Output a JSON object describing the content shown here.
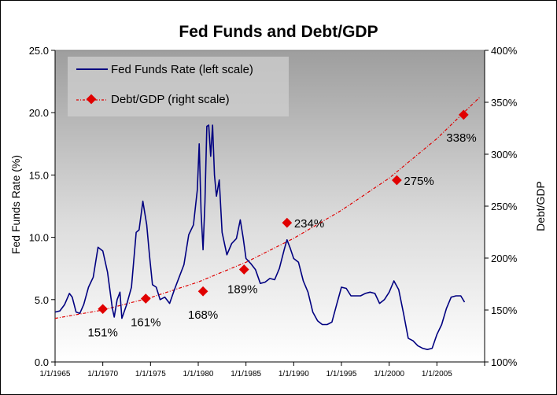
{
  "chart_data": {
    "type": "line",
    "title": "Fed Funds and Debt/GDP",
    "ylabel": "Fed Funds Rate (%)",
    "y2label": "Debt/GDP",
    "ylim": [
      0,
      25
    ],
    "y2lim": [
      100,
      400
    ],
    "xlim": [
      1965,
      2010
    ],
    "y_ticks": [
      "0.0",
      "5.0",
      "10.0",
      "15.0",
      "20.0",
      "25.0"
    ],
    "y2_ticks": [
      "100%",
      "150%",
      "200%",
      "250%",
      "300%",
      "350%",
      "400%"
    ],
    "x_ticks": [
      "1/1/1965",
      "1/1/1970",
      "1/1/1975",
      "1/1/1980",
      "1/1/1985",
      "1/1/1990",
      "1/1/1995",
      "1/1/2000",
      "1/1/2005"
    ],
    "x_tick_years": [
      1965,
      1970,
      1975,
      1980,
      1985,
      1990,
      1995,
      2000,
      2005
    ],
    "grid": false,
    "legend_position": "top-left",
    "series": [
      {
        "name": "Fed Funds Rate (left scale)",
        "axis": "left",
        "color": "#000080",
        "x": [
          1965.0,
          1965.5,
          1966.0,
          1966.5,
          1966.8,
          1967.2,
          1967.6,
          1968.0,
          1968.5,
          1969.0,
          1969.5,
          1970.0,
          1970.5,
          1971.0,
          1971.2,
          1971.5,
          1971.8,
          1972.0,
          1972.5,
          1973.0,
          1973.5,
          1973.8,
          1974.2,
          1974.6,
          1974.9,
          1975.2,
          1975.6,
          1976.0,
          1976.5,
          1977.0,
          1977.5,
          1978.0,
          1978.5,
          1979.0,
          1979.5,
          1979.9,
          1980.1,
          1980.3,
          1980.5,
          1980.7,
          1980.9,
          1981.1,
          1981.3,
          1981.5,
          1981.7,
          1981.9,
          1982.2,
          1982.5,
          1982.8,
          1983.0,
          1983.5,
          1984.0,
          1984.4,
          1984.7,
          1985.0,
          1985.5,
          1986.0,
          1986.5,
          1987.0,
          1987.5,
          1988.0,
          1988.5,
          1989.0,
          1989.3,
          1989.6,
          1990.0,
          1990.5,
          1991.0,
          1991.5,
          1992.0,
          1992.5,
          1993.0,
          1993.5,
          1994.0,
          1994.5,
          1995.0,
          1995.5,
          1996.0,
          1996.5,
          1997.0,
          1997.5,
          1998.0,
          1998.5,
          1999.0,
          1999.5,
          2000.0,
          2000.5,
          2001.0,
          2001.5,
          2002.0,
          2002.5,
          2003.0,
          2003.5,
          2004.0,
          2004.5,
          2005.0,
          2005.5,
          2006.0,
          2006.5,
          2007.0,
          2007.5,
          2007.9
        ],
        "values": [
          4.0,
          4.1,
          4.6,
          5.5,
          5.2,
          4.0,
          3.9,
          4.6,
          6.0,
          6.8,
          9.2,
          8.9,
          7.2,
          4.3,
          3.6,
          5.0,
          5.6,
          3.5,
          4.6,
          6.0,
          10.4,
          10.6,
          12.9,
          11.0,
          8.5,
          6.2,
          6.0,
          5.0,
          5.2,
          4.7,
          5.8,
          6.8,
          7.8,
          10.2,
          11.0,
          13.8,
          17.5,
          12.0,
          9.0,
          12.8,
          18.9,
          19.0,
          16.5,
          19.0,
          15.0,
          13.3,
          14.6,
          10.4,
          9.3,
          8.6,
          9.5,
          9.9,
          11.4,
          10.0,
          8.3,
          7.9,
          7.4,
          6.3,
          6.4,
          6.7,
          6.6,
          7.5,
          9.0,
          9.8,
          9.2,
          8.3,
          8.0,
          6.5,
          5.6,
          4.0,
          3.3,
          3.0,
          3.0,
          3.2,
          4.6,
          6.0,
          5.9,
          5.3,
          5.3,
          5.3,
          5.5,
          5.6,
          5.5,
          4.7,
          5.0,
          5.6,
          6.5,
          5.8,
          3.9,
          1.9,
          1.7,
          1.3,
          1.1,
          1.0,
          1.1,
          2.2,
          3.0,
          4.3,
          5.2,
          5.3,
          5.3,
          4.8
        ]
      },
      {
        "name": "Debt/GDP (right scale)",
        "axis": "right",
        "color": "#e00000",
        "x": [
          1970.0,
          1974.5,
          1980.5,
          1984.8,
          1989.3,
          2000.8,
          2007.8
        ],
        "values": [
          151,
          161,
          168,
          189,
          234,
          275,
          338
        ],
        "labels": [
          "151%",
          "161%",
          "168%",
          "189%",
          "234%",
          "275%",
          "338%"
        ]
      }
    ],
    "trendline": {
      "series": "Debt/GDP (right scale)",
      "type": "exponential",
      "style": "dash-dot",
      "color": "#e00000",
      "x": [
        1965,
        1970,
        1975,
        1980,
        1985,
        1990,
        1995,
        2000,
        2005,
        2009.5
      ],
      "values": [
        142,
        150,
        162,
        177,
        196,
        219,
        246,
        277,
        315,
        355
      ]
    }
  }
}
